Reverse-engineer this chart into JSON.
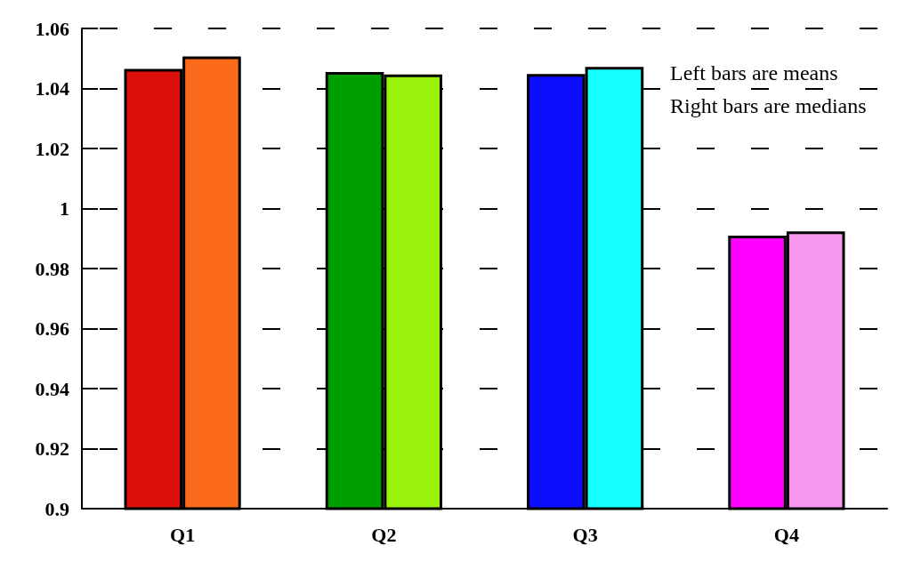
{
  "chart_data": {
    "type": "bar",
    "categories": [
      "Q1",
      "Q2",
      "Q3",
      "Q4"
    ],
    "series": [
      {
        "values": [
          1.0465,
          1.0455,
          1.0448,
          0.991
        ],
        "colors": [
          "#dd100b",
          "#009f00",
          "#0c0cff",
          "#ff00ff"
        ]
      },
      {
        "values": [
          1.0507,
          1.0447,
          1.0472,
          0.9924
        ],
        "colors": [
          "#fb6a1a",
          "#9af20a",
          "#14ffff",
          "#f797f0"
        ]
      }
    ],
    "ylim": [
      0.9,
      1.06
    ],
    "yticks": [
      0.9,
      0.92,
      0.94,
      0.96,
      0.98,
      1,
      1.02,
      1.04,
      1.06
    ],
    "grid": "y",
    "annotations": [
      "Left bars are means",
      "Right bars are medians"
    ]
  }
}
